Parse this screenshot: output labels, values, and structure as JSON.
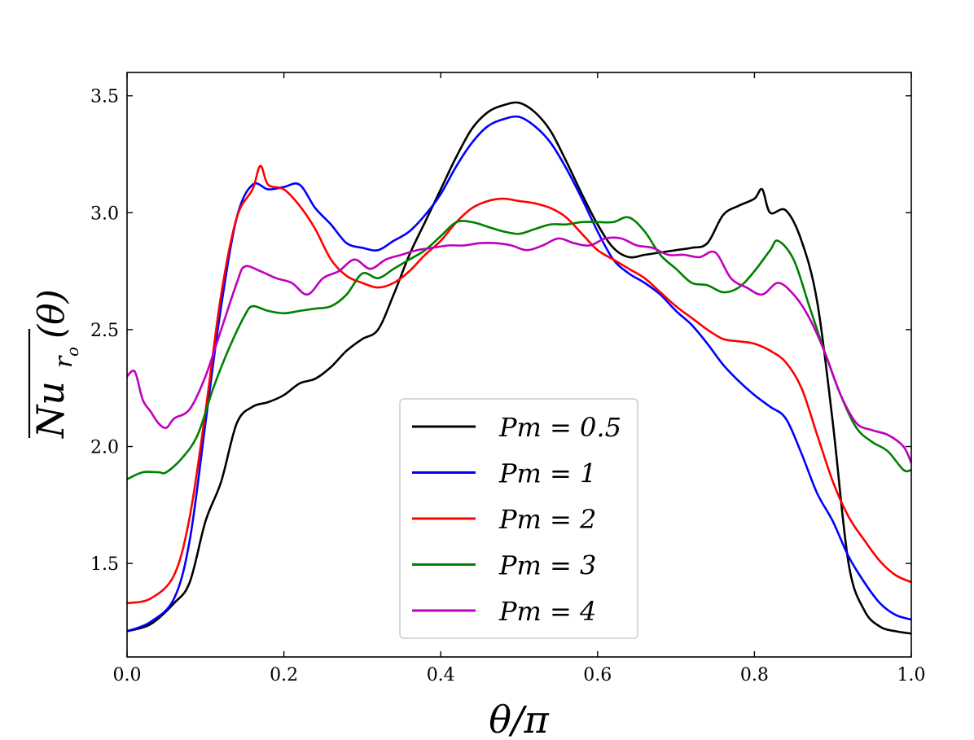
{
  "chart_data": {
    "type": "line",
    "title": "",
    "xlabel": "θ/π",
    "ylabel_main": "Nu",
    "ylabel_sub": "r",
    "ylabel_subsub": "o",
    "ylabel_arg": "(θ)",
    "xlim": [
      0.0,
      1.0
    ],
    "ylim": [
      1.1,
      3.6
    ],
    "x_ticks": [
      0.0,
      0.2,
      0.4,
      0.6,
      0.8,
      1.0
    ],
    "x_tick_labels": [
      "0.0",
      "0.2",
      "0.4",
      "0.6",
      "0.8",
      "1.0"
    ],
    "y_ticks": [
      1.5,
      2.0,
      2.5,
      3.0,
      3.5
    ],
    "y_tick_labels": [
      "1.5",
      "2.0",
      "2.5",
      "3.0",
      "3.5"
    ],
    "grid": false,
    "legend_position": "lower-center",
    "series": [
      {
        "name": "Pm = 0.5",
        "color": "#000000",
        "x": [
          0.0,
          0.03,
          0.06,
          0.08,
          0.1,
          0.12,
          0.14,
          0.16,
          0.18,
          0.2,
          0.22,
          0.24,
          0.26,
          0.28,
          0.3,
          0.32,
          0.34,
          0.36,
          0.38,
          0.4,
          0.42,
          0.44,
          0.46,
          0.48,
          0.5,
          0.52,
          0.54,
          0.56,
          0.58,
          0.6,
          0.62,
          0.64,
          0.66,
          0.68,
          0.7,
          0.72,
          0.74,
          0.76,
          0.78,
          0.8,
          0.81,
          0.82,
          0.84,
          0.86,
          0.88,
          0.9,
          0.92,
          0.94,
          0.96,
          0.98,
          1.0
        ],
        "values": [
          1.21,
          1.24,
          1.33,
          1.42,
          1.68,
          1.85,
          2.1,
          2.17,
          2.19,
          2.22,
          2.27,
          2.29,
          2.34,
          2.41,
          2.46,
          2.5,
          2.65,
          2.82,
          2.96,
          3.1,
          3.24,
          3.36,
          3.43,
          3.46,
          3.47,
          3.43,
          3.35,
          3.22,
          3.08,
          2.95,
          2.85,
          2.81,
          2.82,
          2.83,
          2.84,
          2.85,
          2.87,
          2.99,
          3.03,
          3.06,
          3.1,
          3.0,
          3.01,
          2.88,
          2.62,
          2.1,
          1.5,
          1.3,
          1.23,
          1.21,
          1.2
        ]
      },
      {
        "name": "Pm = 1",
        "color": "#0000ff",
        "x": [
          0.0,
          0.03,
          0.06,
          0.08,
          0.1,
          0.12,
          0.14,
          0.16,
          0.18,
          0.2,
          0.22,
          0.24,
          0.26,
          0.28,
          0.3,
          0.32,
          0.34,
          0.36,
          0.38,
          0.4,
          0.42,
          0.44,
          0.46,
          0.48,
          0.5,
          0.52,
          0.54,
          0.56,
          0.58,
          0.6,
          0.62,
          0.64,
          0.66,
          0.68,
          0.7,
          0.72,
          0.74,
          0.76,
          0.78,
          0.8,
          0.82,
          0.84,
          0.86,
          0.88,
          0.9,
          0.92,
          0.94,
          0.96,
          0.98,
          1.0
        ],
        "values": [
          1.21,
          1.25,
          1.35,
          1.6,
          2.1,
          2.6,
          2.98,
          3.12,
          3.1,
          3.11,
          3.12,
          3.02,
          2.95,
          2.87,
          2.85,
          2.84,
          2.88,
          2.92,
          2.99,
          3.08,
          3.2,
          3.3,
          3.37,
          3.4,
          3.41,
          3.37,
          3.3,
          3.19,
          3.06,
          2.92,
          2.8,
          2.74,
          2.7,
          2.65,
          2.58,
          2.52,
          2.44,
          2.35,
          2.28,
          2.22,
          2.17,
          2.12,
          1.97,
          1.8,
          1.68,
          1.53,
          1.42,
          1.33,
          1.28,
          1.26
        ]
      },
      {
        "name": "Pm = 2",
        "color": "#ff0000",
        "x": [
          0.0,
          0.03,
          0.06,
          0.08,
          0.1,
          0.12,
          0.14,
          0.16,
          0.17,
          0.18,
          0.2,
          0.22,
          0.24,
          0.26,
          0.28,
          0.3,
          0.32,
          0.34,
          0.36,
          0.38,
          0.4,
          0.42,
          0.44,
          0.46,
          0.48,
          0.5,
          0.52,
          0.54,
          0.56,
          0.58,
          0.6,
          0.62,
          0.64,
          0.66,
          0.68,
          0.7,
          0.72,
          0.74,
          0.76,
          0.78,
          0.8,
          0.82,
          0.84,
          0.86,
          0.88,
          0.9,
          0.92,
          0.94,
          0.96,
          0.98,
          1.0
        ],
        "values": [
          1.33,
          1.35,
          1.45,
          1.7,
          2.15,
          2.65,
          2.98,
          3.1,
          3.2,
          3.12,
          3.1,
          3.03,
          2.93,
          2.8,
          2.73,
          2.7,
          2.68,
          2.7,
          2.75,
          2.82,
          2.88,
          2.96,
          3.02,
          3.05,
          3.06,
          3.05,
          3.04,
          3.02,
          2.98,
          2.91,
          2.84,
          2.8,
          2.76,
          2.72,
          2.66,
          2.6,
          2.55,
          2.5,
          2.46,
          2.45,
          2.44,
          2.41,
          2.36,
          2.25,
          2.05,
          1.85,
          1.7,
          1.6,
          1.51,
          1.45,
          1.42
        ]
      },
      {
        "name": "Pm = 3",
        "color": "#008000",
        "x": [
          0.0,
          0.02,
          0.04,
          0.05,
          0.07,
          0.09,
          0.11,
          0.13,
          0.15,
          0.16,
          0.18,
          0.2,
          0.22,
          0.24,
          0.26,
          0.28,
          0.3,
          0.32,
          0.34,
          0.36,
          0.38,
          0.4,
          0.42,
          0.44,
          0.46,
          0.48,
          0.5,
          0.52,
          0.54,
          0.56,
          0.58,
          0.6,
          0.62,
          0.64,
          0.66,
          0.68,
          0.7,
          0.72,
          0.74,
          0.76,
          0.78,
          0.8,
          0.82,
          0.83,
          0.85,
          0.87,
          0.89,
          0.91,
          0.93,
          0.95,
          0.97,
          0.99,
          1.0
        ],
        "values": [
          1.86,
          1.89,
          1.89,
          1.89,
          1.95,
          2.05,
          2.25,
          2.42,
          2.56,
          2.6,
          2.58,
          2.57,
          2.58,
          2.59,
          2.6,
          2.65,
          2.74,
          2.72,
          2.76,
          2.8,
          2.84,
          2.9,
          2.96,
          2.96,
          2.94,
          2.92,
          2.91,
          2.93,
          2.95,
          2.95,
          2.96,
          2.96,
          2.96,
          2.98,
          2.92,
          2.82,
          2.76,
          2.7,
          2.69,
          2.66,
          2.68,
          2.75,
          2.84,
          2.88,
          2.8,
          2.6,
          2.4,
          2.22,
          2.08,
          2.02,
          1.98,
          1.9,
          1.9
        ]
      },
      {
        "name": "Pm = 4",
        "color": "#bf00bf",
        "x": [
          0.0,
          0.01,
          0.02,
          0.03,
          0.04,
          0.05,
          0.06,
          0.08,
          0.1,
          0.12,
          0.14,
          0.15,
          0.17,
          0.19,
          0.21,
          0.23,
          0.25,
          0.27,
          0.29,
          0.31,
          0.33,
          0.35,
          0.37,
          0.39,
          0.41,
          0.43,
          0.45,
          0.47,
          0.49,
          0.51,
          0.53,
          0.55,
          0.57,
          0.59,
          0.61,
          0.63,
          0.65,
          0.67,
          0.69,
          0.71,
          0.73,
          0.75,
          0.77,
          0.79,
          0.81,
          0.83,
          0.85,
          0.87,
          0.89,
          0.91,
          0.93,
          0.95,
          0.97,
          0.99,
          1.0
        ],
        "values": [
          2.3,
          2.32,
          2.2,
          2.15,
          2.1,
          2.08,
          2.12,
          2.16,
          2.3,
          2.5,
          2.7,
          2.77,
          2.75,
          2.72,
          2.7,
          2.65,
          2.72,
          2.75,
          2.8,
          2.76,
          2.8,
          2.82,
          2.84,
          2.85,
          2.86,
          2.86,
          2.87,
          2.87,
          2.86,
          2.84,
          2.86,
          2.89,
          2.87,
          2.86,
          2.89,
          2.89,
          2.86,
          2.85,
          2.82,
          2.82,
          2.81,
          2.83,
          2.72,
          2.68,
          2.65,
          2.7,
          2.65,
          2.55,
          2.4,
          2.22,
          2.1,
          2.07,
          2.05,
          2.0,
          1.93
        ]
      }
    ]
  }
}
